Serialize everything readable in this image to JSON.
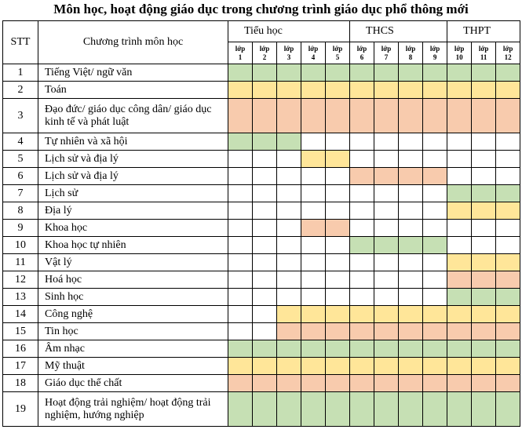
{
  "title": "Môn học, hoạt động giáo dục trong chương trình giáo dục phổ thông mới",
  "table": {
    "headers": {
      "stt": "STT",
      "subject": "Chương trình môn học",
      "groups": [
        {
          "label": "Tiểu học",
          "span": 5
        },
        {
          "label": "THCS",
          "span": 4
        },
        {
          "label": "THPT",
          "span": 3
        }
      ],
      "grades": [
        "lớp\n1",
        "lớp\n2",
        "lớp\n3",
        "lớp\n4",
        "lớp\n5",
        "lớp\n6",
        "lớp\n7",
        "lớp\n8",
        "lớp\n9",
        "lớp\n10",
        "lớp\n11",
        "lớp\n12"
      ]
    },
    "rows": [
      {
        "stt": "1",
        "subject": "Tiếng Việt/ ngữ văn",
        "fill": [
          "#c6e0b4",
          "#c6e0b4",
          "#c6e0b4",
          "#c6e0b4",
          "#c6e0b4",
          "#c6e0b4",
          "#c6e0b4",
          "#c6e0b4",
          "#c6e0b4",
          "#c6e0b4",
          "#c6e0b4",
          "#c6e0b4"
        ]
      },
      {
        "stt": "2",
        "subject": "Toán",
        "fill": [
          "#ffe699",
          "#ffe699",
          "#ffe699",
          "#ffe699",
          "#ffe699",
          "#ffe699",
          "#ffe699",
          "#ffe699",
          "#ffe699",
          "#ffe699",
          "#ffe699",
          "#ffe699"
        ]
      },
      {
        "stt": "3",
        "subject": "Đạo đức/ giáo dục công dân/ giáo dục kinh tế và phát luật",
        "fill": [
          "#f8cbad",
          "#f8cbad",
          "#f8cbad",
          "#f8cbad",
          "#f8cbad",
          "#f8cbad",
          "#f8cbad",
          "#f8cbad",
          "#f8cbad",
          "#f8cbad",
          "#f8cbad",
          "#f8cbad"
        ]
      },
      {
        "stt": "4",
        "subject": "Tự nhiên và xã hội",
        "fill": [
          "#c6e0b4",
          "#c6e0b4",
          "#c6e0b4",
          null,
          null,
          null,
          null,
          null,
          null,
          null,
          null,
          null
        ]
      },
      {
        "stt": "5",
        "subject": "Lịch sử và địa lý",
        "fill": [
          null,
          null,
          null,
          "#ffe699",
          "#ffe699",
          null,
          null,
          null,
          null,
          null,
          null,
          null
        ]
      },
      {
        "stt": "6",
        "subject": "Lịch sử và địa lý",
        "fill": [
          null,
          null,
          null,
          null,
          null,
          "#f8cbad",
          "#f8cbad",
          "#f8cbad",
          "#f8cbad",
          null,
          null,
          null
        ]
      },
      {
        "stt": "7",
        "subject": "Lịch sử",
        "fill": [
          null,
          null,
          null,
          null,
          null,
          null,
          null,
          null,
          null,
          "#c6e0b4",
          "#c6e0b4",
          "#c6e0b4"
        ]
      },
      {
        "stt": "8",
        "subject": "Địa lý",
        "fill": [
          null,
          null,
          null,
          null,
          null,
          null,
          null,
          null,
          null,
          "#ffe699",
          "#ffe699",
          "#ffe699"
        ]
      },
      {
        "stt": "9",
        "subject": "Khoa học",
        "fill": [
          null,
          null,
          null,
          "#f8cbad",
          "#f8cbad",
          null,
          null,
          null,
          null,
          null,
          null,
          null
        ]
      },
      {
        "stt": "10",
        "subject": "Khoa học tự nhiên",
        "fill": [
          null,
          null,
          null,
          null,
          null,
          "#c6e0b4",
          "#c6e0b4",
          "#c6e0b4",
          "#c6e0b4",
          null,
          null,
          null
        ]
      },
      {
        "stt": "11",
        "subject": "Vật lý",
        "fill": [
          null,
          null,
          null,
          null,
          null,
          null,
          null,
          null,
          null,
          "#ffe699",
          "#ffe699",
          "#ffe699"
        ]
      },
      {
        "stt": "12",
        "subject": "Hoá học",
        "fill": [
          null,
          null,
          null,
          null,
          null,
          null,
          null,
          null,
          null,
          "#f8cbad",
          "#f8cbad",
          "#f8cbad"
        ]
      },
      {
        "stt": "13",
        "subject": "Sinh học",
        "fill": [
          null,
          null,
          null,
          null,
          null,
          null,
          null,
          null,
          null,
          "#c6e0b4",
          "#c6e0b4",
          "#c6e0b4"
        ]
      },
      {
        "stt": "14",
        "subject": "Công nghệ",
        "fill": [
          null,
          null,
          "#ffe699",
          "#ffe699",
          "#ffe699",
          "#ffe699",
          "#ffe699",
          "#ffe699",
          "#ffe699",
          "#ffe699",
          "#ffe699",
          "#ffe699"
        ]
      },
      {
        "stt": "15",
        "subject": "Tin học",
        "fill": [
          null,
          null,
          "#f8cbad",
          "#f8cbad",
          "#f8cbad",
          "#f8cbad",
          "#f8cbad",
          "#f8cbad",
          "#f8cbad",
          "#f8cbad",
          "#f8cbad",
          "#f8cbad"
        ]
      },
      {
        "stt": "16",
        "subject": "Âm nhạc",
        "fill": [
          "#c6e0b4",
          "#c6e0b4",
          "#c6e0b4",
          "#c6e0b4",
          "#c6e0b4",
          "#c6e0b4",
          "#c6e0b4",
          "#c6e0b4",
          "#c6e0b4",
          "#c6e0b4",
          "#c6e0b4",
          "#c6e0b4"
        ]
      },
      {
        "stt": "17",
        "subject": "Mỹ thuật",
        "fill": [
          "#ffe699",
          "#ffe699",
          "#ffe699",
          "#ffe699",
          "#ffe699",
          "#ffe699",
          "#ffe699",
          "#ffe699",
          "#ffe699",
          "#ffe699",
          "#ffe699",
          "#ffe699"
        ]
      },
      {
        "stt": "18",
        "subject": "Giáo dục thể chất",
        "fill": [
          "#f8cbad",
          "#f8cbad",
          "#f8cbad",
          "#f8cbad",
          "#f8cbad",
          "#f8cbad",
          "#f8cbad",
          "#f8cbad",
          "#f8cbad",
          "#f8cbad",
          "#f8cbad",
          "#f8cbad"
        ]
      },
      {
        "stt": "19",
        "subject": "Hoạt động trải nghiệm/ hoạt động trải nghiệm, hướng nghiệp",
        "fill": [
          "#c6e0b4",
          "#c6e0b4",
          "#c6e0b4",
          "#c6e0b4",
          "#c6e0b4",
          "#c6e0b4",
          "#c6e0b4",
          "#c6e0b4",
          "#c6e0b4",
          "#c6e0b4",
          "#c6e0b4",
          "#c6e0b4"
        ]
      }
    ]
  }
}
